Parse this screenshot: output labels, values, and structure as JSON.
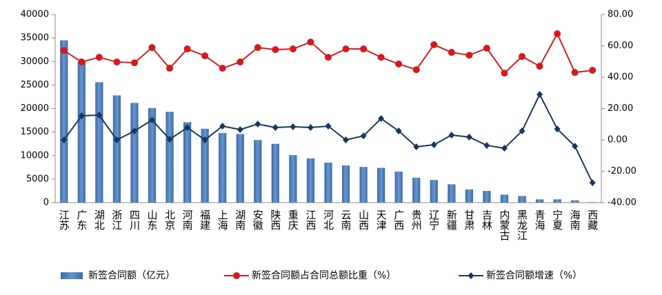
{
  "chart_data": {
    "type": "bar-line",
    "categories": [
      "江苏",
      "广东",
      "湖北",
      "浙江",
      "四川",
      "山东",
      "北京",
      "河南",
      "福建",
      "上海",
      "湖南",
      "安徽",
      "陕西",
      "重庆",
      "江西",
      "河北",
      "云南",
      "山西",
      "天津",
      "广西",
      "贵州",
      "辽宁",
      "新疆",
      "甘肃",
      "吉林",
      "内蒙古",
      "黑龙江",
      "青海",
      "宁夏",
      "海南",
      "西藏"
    ],
    "series": [
      {
        "name": "新签合同额（亿元）",
        "type": "bar",
        "color": "#4f81bd",
        "values": [
          34500,
          29900,
          25600,
          22800,
          21200,
          20100,
          19300,
          17100,
          15700,
          14800,
          14600,
          13300,
          12500,
          10100,
          9400,
          8500,
          7900,
          7600,
          7400,
          6600,
          5300,
          4800,
          3900,
          2800,
          2500,
          1700,
          1400,
          700,
          700,
          500,
          100
        ]
      },
      {
        "name": "新签合同额占合同总额比重（%）",
        "type": "line",
        "axis": "y2",
        "color": "#d7191c",
        "marker": "circle",
        "values": [
          57,
          49.7,
          52.7,
          49.7,
          49.2,
          58.9,
          45.7,
          58,
          53.6,
          45.7,
          49.7,
          58.9,
          57.6,
          58,
          62.4,
          52.7,
          58,
          58,
          52.7,
          48.4,
          44.8,
          60.7,
          55.8,
          54,
          58.5,
          42.6,
          53.2,
          47,
          67.7,
          43,
          44.4
        ]
      },
      {
        "name": "新签合同额增速（%）",
        "type": "line",
        "axis": "y2",
        "color": "#17375e",
        "marker": "diamond",
        "values": [
          0,
          15.4,
          15.8,
          0,
          5.7,
          12.7,
          0.4,
          7.9,
          0,
          8.8,
          6.6,
          10.1,
          7.9,
          8.4,
          7.9,
          8.8,
          0,
          2.6,
          13.6,
          5.7,
          -4.4,
          -3.1,
          3.1,
          1.8,
          -3.5,
          -5.3,
          5.7,
          29,
          7,
          -4,
          -27.3
        ]
      }
    ],
    "ylim": [
      0,
      40000
    ],
    "yticks": [
      0,
      5000,
      10000,
      15000,
      20000,
      25000,
      30000,
      35000,
      40000
    ],
    "y2lim": [
      -40,
      80
    ],
    "y2ticks": [
      {
        "value": -40,
        "label": "-40.00"
      },
      {
        "value": -20,
        "label": "-20.00"
      },
      {
        "value": 0,
        "label": "0.00"
      },
      {
        "value": 20,
        "label": "20.00"
      },
      {
        "value": 40,
        "label": "40.00"
      },
      {
        "value": 60,
        "label": "60.00"
      },
      {
        "value": 80,
        "label": "80.00"
      }
    ],
    "grid": false,
    "legend": "bottom"
  }
}
